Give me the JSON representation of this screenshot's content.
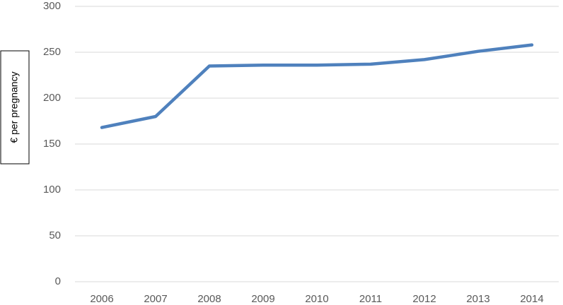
{
  "chart_data": {
    "type": "line",
    "y_label": "€ per pregnancy",
    "categories": [
      "2006",
      "2007",
      "2008",
      "2009",
      "2010",
      "2011",
      "2012",
      "2013",
      "2014"
    ],
    "values": [
      168,
      180,
      235,
      236,
      236,
      237,
      242,
      251,
      258
    ],
    "color": "#4f81bd",
    "ylim": [
      0,
      300
    ],
    "yticks": [
      0,
      50,
      100,
      150,
      200,
      250,
      300
    ],
    "grid": true
  }
}
